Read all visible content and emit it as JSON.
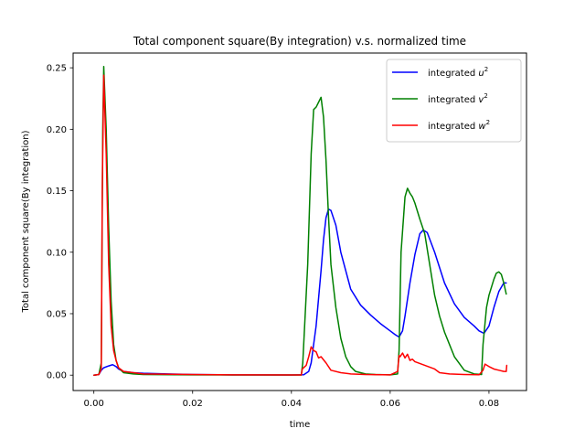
{
  "chart_data": {
    "type": "line",
    "title": "Total component square(By integration) v.s. normalized time",
    "xlabel": "time",
    "ylabel": "Total component square(By integration)",
    "xlim": [
      -0.0042,
      0.0876
    ],
    "ylim": [
      -0.0125,
      0.262
    ],
    "xticks": [
      0.0,
      0.02,
      0.04,
      0.06,
      0.08
    ],
    "xtick_labels": [
      "0.00",
      "0.02",
      "0.04",
      "0.06",
      "0.08"
    ],
    "yticks": [
      0.0,
      0.05,
      0.1,
      0.15,
      0.2,
      0.25
    ],
    "ytick_labels": [
      "0.00",
      "0.05",
      "0.10",
      "0.15",
      "0.20",
      "0.25"
    ],
    "grid": false,
    "legend_position": "top-right",
    "series": [
      {
        "name": "integrated u²",
        "label_base": "integrated ",
        "label_var": "u",
        "color": "#0000ff",
        "x": [
          0.0,
          0.001,
          0.0015,
          0.002,
          0.003,
          0.0038,
          0.0045,
          0.005,
          0.006,
          0.008,
          0.01,
          0.015,
          0.02,
          0.03,
          0.04,
          0.0425,
          0.0435,
          0.044,
          0.045,
          0.046,
          0.0465,
          0.047,
          0.0475,
          0.048,
          0.049,
          0.05,
          0.052,
          0.054,
          0.056,
          0.058,
          0.06,
          0.061,
          0.0618,
          0.0625,
          0.063,
          0.064,
          0.065,
          0.066,
          0.0667,
          0.0675,
          0.069,
          0.071,
          0.073,
          0.075,
          0.077,
          0.078,
          0.079,
          0.08,
          0.081,
          0.082,
          0.083,
          0.0835
        ],
        "y": [
          0.0,
          0.0005,
          0.004,
          0.006,
          0.0075,
          0.0085,
          0.007,
          0.005,
          0.003,
          0.002,
          0.0015,
          0.001,
          0.0005,
          0.0002,
          0.0001,
          0.0003,
          0.003,
          0.01,
          0.04,
          0.085,
          0.11,
          0.128,
          0.135,
          0.134,
          0.122,
          0.1,
          0.07,
          0.057,
          0.049,
          0.042,
          0.036,
          0.033,
          0.031,
          0.036,
          0.048,
          0.075,
          0.098,
          0.115,
          0.118,
          0.116,
          0.1,
          0.075,
          0.058,
          0.047,
          0.04,
          0.036,
          0.034,
          0.04,
          0.055,
          0.068,
          0.075,
          0.075
        ]
      },
      {
        "name": "integrated v²",
        "label_base": "integrated ",
        "label_var": "v",
        "color": "#008000",
        "x": [
          0.0,
          0.001,
          0.0015,
          0.0018,
          0.002,
          0.0025,
          0.003,
          0.0035,
          0.004,
          0.0045,
          0.005,
          0.006,
          0.008,
          0.01,
          0.02,
          0.03,
          0.042,
          0.0423,
          0.0428,
          0.0433,
          0.044,
          0.0445,
          0.045,
          0.0455,
          0.046,
          0.0465,
          0.047,
          0.0475,
          0.048,
          0.049,
          0.05,
          0.051,
          0.052,
          0.053,
          0.055,
          0.057,
          0.06,
          0.0615,
          0.0618,
          0.0622,
          0.063,
          0.0635,
          0.064,
          0.0645,
          0.065,
          0.066,
          0.067,
          0.068,
          0.069,
          0.07,
          0.071,
          0.072,
          0.073,
          0.075,
          0.077,
          0.0785,
          0.0788,
          0.0795,
          0.08,
          0.081,
          0.0815,
          0.082,
          0.0825,
          0.083,
          0.0835
        ],
        "y": [
          0.0,
          0.0005,
          0.01,
          0.2,
          0.251,
          0.2,
          0.12,
          0.06,
          0.025,
          0.012,
          0.006,
          0.002,
          0.001,
          0.0005,
          0.0002,
          0.0001,
          0.0001,
          0.01,
          0.05,
          0.09,
          0.18,
          0.216,
          0.218,
          0.222,
          0.226,
          0.21,
          0.175,
          0.13,
          0.09,
          0.055,
          0.03,
          0.015,
          0.007,
          0.003,
          0.001,
          0.0005,
          0.0002,
          0.001,
          0.02,
          0.1,
          0.145,
          0.152,
          0.148,
          0.145,
          0.14,
          0.127,
          0.115,
          0.09,
          0.065,
          0.048,
          0.035,
          0.025,
          0.015,
          0.004,
          0.001,
          0.0005,
          0.025,
          0.055,
          0.065,
          0.078,
          0.083,
          0.084,
          0.082,
          0.075,
          0.066
        ]
      },
      {
        "name": "integrated w²",
        "label_base": "integrated ",
        "label_var": "w",
        "color": "#ff0000",
        "x": [
          0.0,
          0.001,
          0.0015,
          0.0017,
          0.002,
          0.0025,
          0.003,
          0.0035,
          0.004,
          0.0045,
          0.005,
          0.006,
          0.008,
          0.01,
          0.02,
          0.03,
          0.042,
          0.0422,
          0.043,
          0.0435,
          0.044,
          0.0445,
          0.045,
          0.0455,
          0.046,
          0.047,
          0.048,
          0.05,
          0.052,
          0.055,
          0.06,
          0.0615,
          0.0618,
          0.062,
          0.0625,
          0.063,
          0.0635,
          0.064,
          0.0645,
          0.065,
          0.067,
          0.069,
          0.07,
          0.072,
          0.075,
          0.078,
          0.0788,
          0.0792,
          0.08,
          0.081,
          0.082,
          0.083,
          0.0835,
          0.0836
        ],
        "y": [
          0.0,
          0.0005,
          0.005,
          0.15,
          0.244,
          0.18,
          0.09,
          0.04,
          0.02,
          0.012,
          0.006,
          0.003,
          0.002,
          0.001,
          0.0005,
          0.0002,
          0.0001,
          0.005,
          0.008,
          0.015,
          0.023,
          0.02,
          0.019,
          0.014,
          0.015,
          0.01,
          0.004,
          0.002,
          0.001,
          0.0005,
          0.0002,
          0.003,
          0.016,
          0.015,
          0.018,
          0.014,
          0.017,
          0.012,
          0.013,
          0.011,
          0.008,
          0.005,
          0.002,
          0.001,
          0.0005,
          0.0003,
          0.004,
          0.009,
          0.007,
          0.005,
          0.004,
          0.003,
          0.003,
          0.008
        ]
      }
    ]
  }
}
